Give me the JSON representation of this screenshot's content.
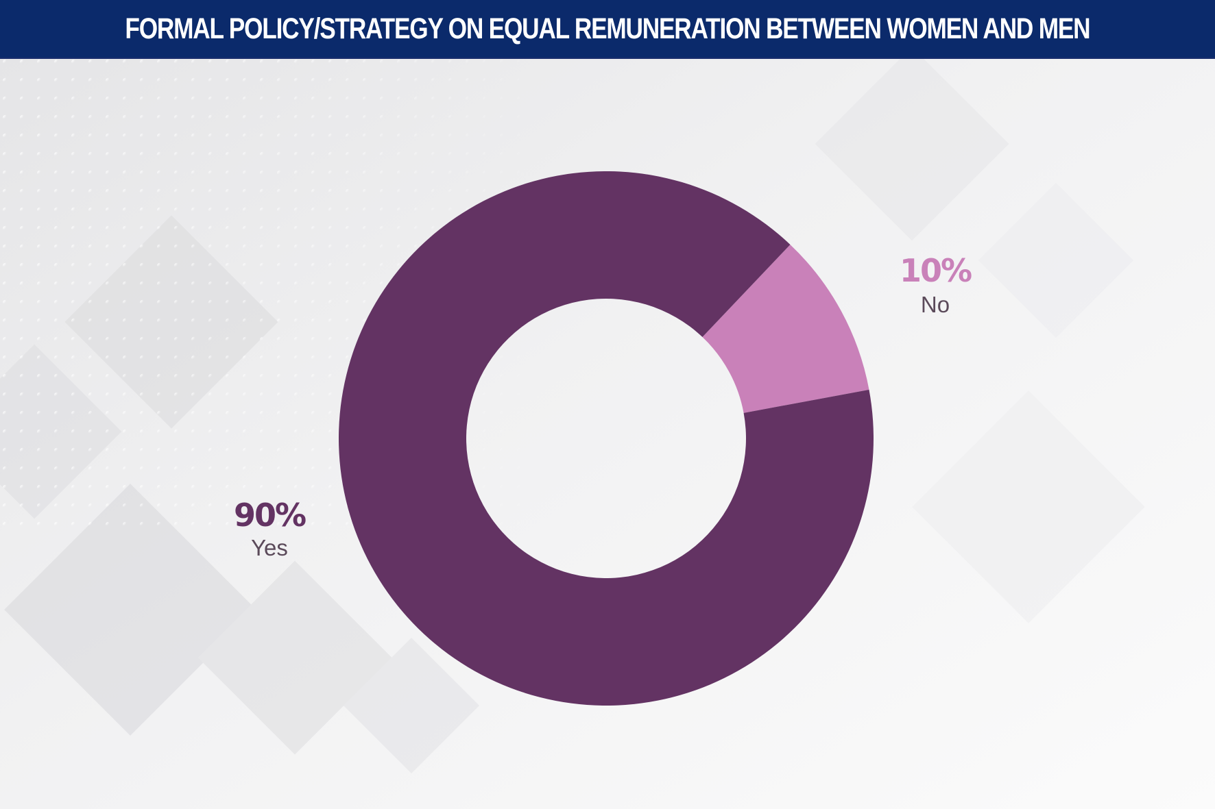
{
  "header": {
    "title": "FORMAL POLICY/STRATEGY ON EQUAL REMUNERATION BETWEEN WOMEN AND MEN",
    "background_color": "#0b2a6b",
    "text_color": "#ffffff"
  },
  "chart_data": {
    "type": "pie",
    "donut": true,
    "title": "FORMAL POLICY/STRATEGY ON EQUAL REMUNERATION BETWEEN WOMEN AND MEN",
    "categories": [
      "Yes",
      "No"
    ],
    "values": [
      90,
      10
    ],
    "value_labels": [
      "90%",
      "10%"
    ],
    "colors": [
      "#633363",
      "#c981b9"
    ],
    "label_colors": [
      "#633363",
      "#c981b9"
    ],
    "category_label_color": "#5b4a5a",
    "legend": "none"
  }
}
